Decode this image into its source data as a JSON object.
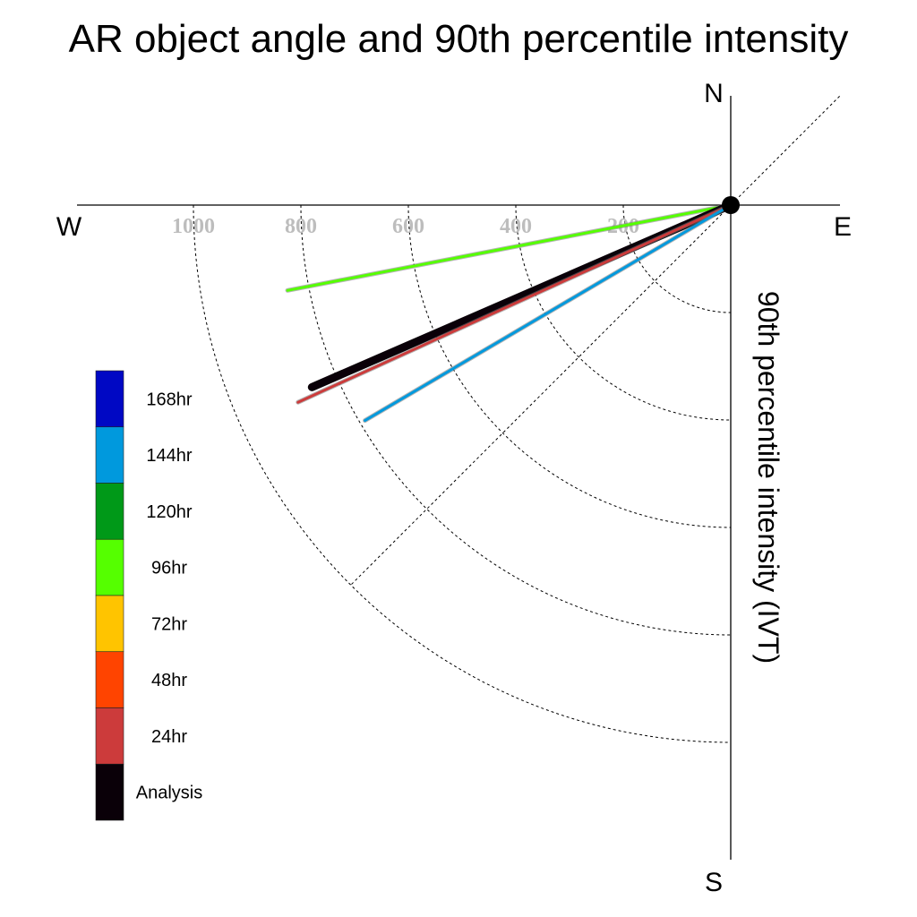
{
  "chart_data": {
    "type": "polar",
    "title": "AR object angle and 90th percentile intensity",
    "ylabel": "90th percentile intensity (IVT)",
    "compass": {
      "north": "N",
      "south": "S",
      "east": "E",
      "west": "W"
    },
    "radial_ticks": [
      "1000",
      "800",
      "600",
      "400",
      "200"
    ],
    "radial_tick_values": [
      1000,
      800,
      600,
      400,
      200
    ],
    "rlim": [
      0,
      1200
    ],
    "series": [
      {
        "name": "96hr",
        "color": "#55ff00",
        "angle_deg": 190.9,
        "intensity": 840
      },
      {
        "name": "Analysis",
        "color": "#0a0008",
        "angle_deg": 203.5,
        "intensity": 850
      },
      {
        "name": "24hr",
        "color": "#cc3b3b",
        "angle_deg": 204.5,
        "intensity": 885
      },
      {
        "name": "144hr",
        "color": "#0099dd",
        "angle_deg": 210.5,
        "intensity": 790
      }
    ],
    "legend": [
      {
        "label": "168hr",
        "color": "#0008c4"
      },
      {
        "label": "144hr",
        "color": "#0099dd"
      },
      {
        "label": "120hr",
        "color": "#009918"
      },
      {
        "label": "96hr",
        "color": "#55ff00"
      },
      {
        "label": "72hr",
        "color": "#ffc400"
      },
      {
        "label": "48hr",
        "color": "#ff4400"
      },
      {
        "label": "24hr",
        "color": "#cc3b3b"
      },
      {
        "label": "Analysis",
        "color": "#0a0008"
      }
    ]
  }
}
